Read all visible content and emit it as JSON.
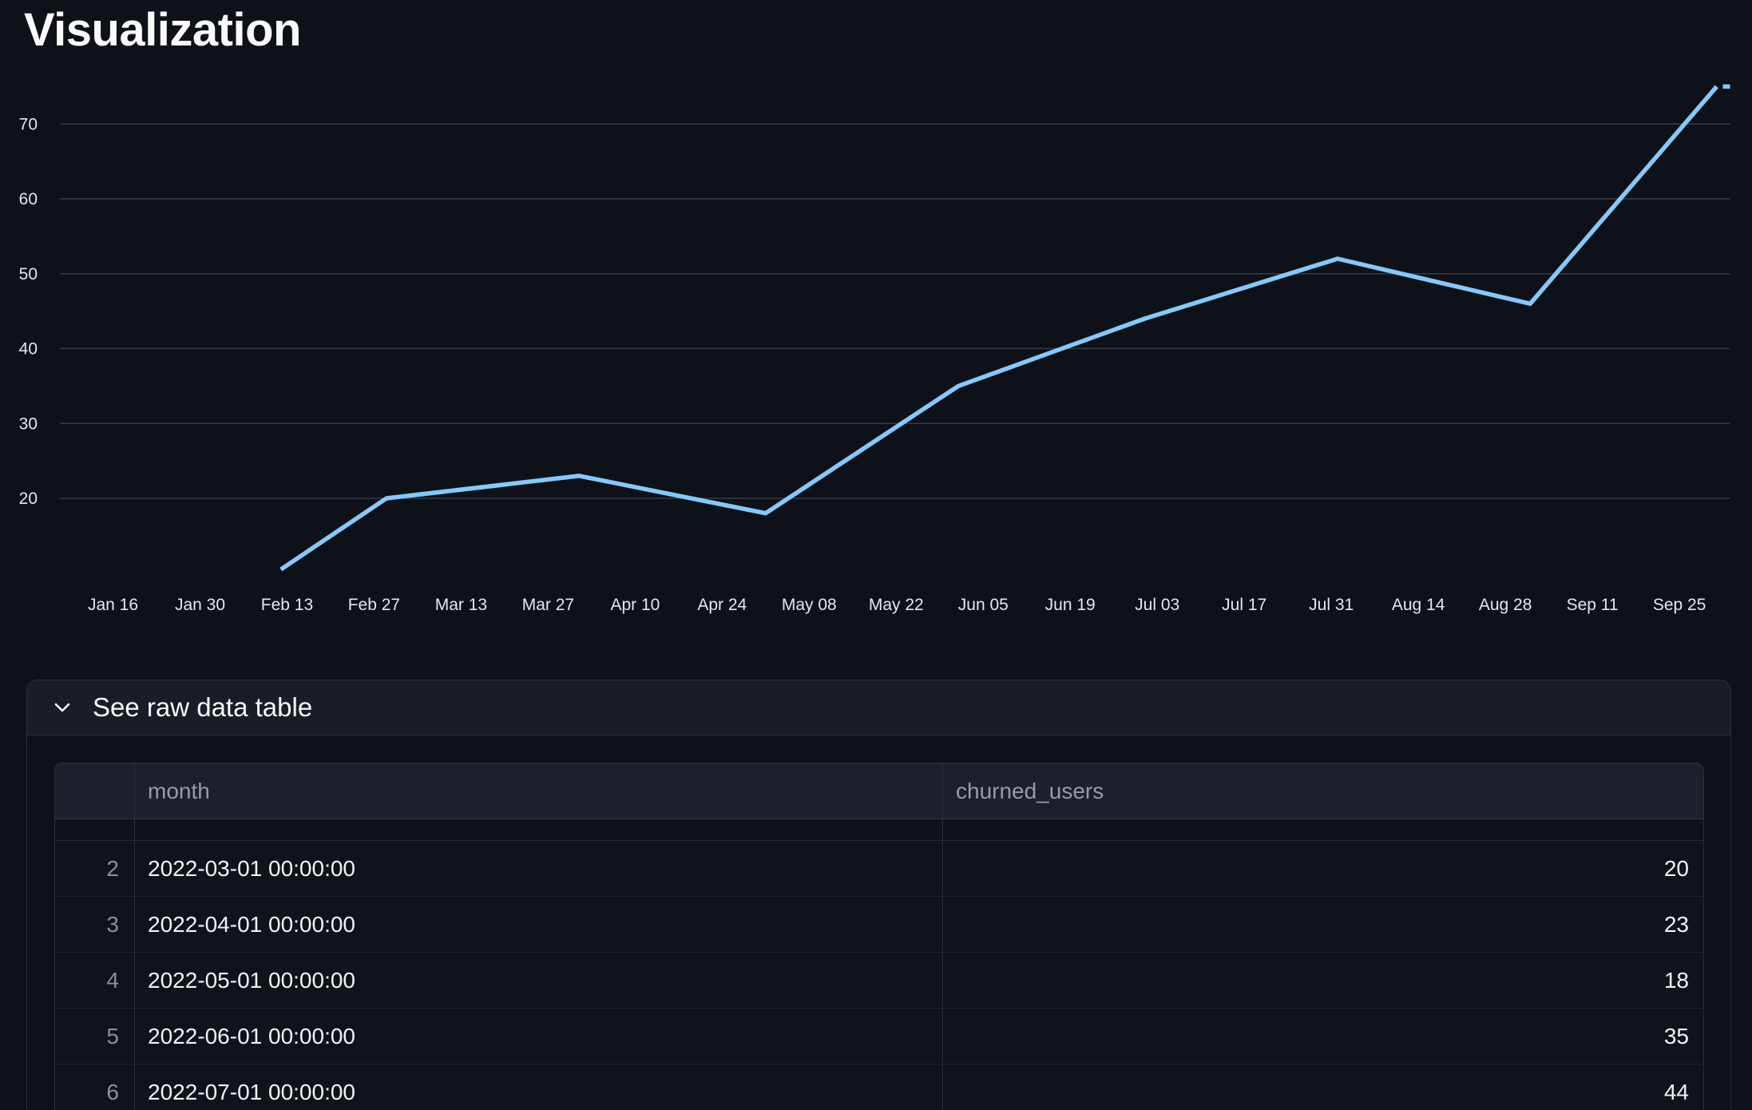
{
  "page": {
    "title": "Visualization"
  },
  "chart_data": {
    "type": "line",
    "title": "Visualization",
    "legend": "none",
    "grid": "horizontal",
    "x_axis": {
      "type": "temporal",
      "ticks": [
        {
          "label": "Jan 16",
          "date": "2022-01-16"
        },
        {
          "label": "Jan 30",
          "date": "2022-01-30"
        },
        {
          "label": "Feb 13",
          "date": "2022-02-13"
        },
        {
          "label": "Feb 27",
          "date": "2022-02-27"
        },
        {
          "label": "Mar 13",
          "date": "2022-03-13"
        },
        {
          "label": "Mar 27",
          "date": "2022-03-27"
        },
        {
          "label": "Apr 10",
          "date": "2022-04-10"
        },
        {
          "label": "Apr 24",
          "date": "2022-04-24"
        },
        {
          "label": "May 08",
          "date": "2022-05-08"
        },
        {
          "label": "May 22",
          "date": "2022-05-22"
        },
        {
          "label": "Jun 05",
          "date": "2022-06-05"
        },
        {
          "label": "Jun 19",
          "date": "2022-06-19"
        },
        {
          "label": "Jul 03",
          "date": "2022-07-03"
        },
        {
          "label": "Jul 17",
          "date": "2022-07-17"
        },
        {
          "label": "Jul 31",
          "date": "2022-07-31"
        },
        {
          "label": "Aug 14",
          "date": "2022-08-14"
        },
        {
          "label": "Aug 28",
          "date": "2022-08-28"
        },
        {
          "label": "Sep 11",
          "date": "2022-09-11"
        },
        {
          "label": "Sep 25",
          "date": "2022-09-25"
        }
      ]
    },
    "y_axis": {
      "ticks": [
        70,
        60,
        50,
        40,
        30,
        20
      ],
      "gridlines": true
    },
    "series": [
      {
        "name": "churned_users",
        "color": "#83c9ff",
        "points": [
          {
            "date": "2022-02-12",
            "value": 10.5,
            "estimated": true,
            "note": "visible start of line, partially cut"
          },
          {
            "date": "2022-03-01",
            "value": 20
          },
          {
            "date": "2022-04-01",
            "value": 23
          },
          {
            "date": "2022-05-01",
            "value": 18
          },
          {
            "date": "2022-06-01",
            "value": 35
          },
          {
            "date": "2022-07-01",
            "value": 44
          },
          {
            "date": "2022-08-01",
            "value": 52,
            "estimated": true
          },
          {
            "date": "2022-09-01",
            "value": 46,
            "estimated": true
          },
          {
            "date": "2022-10-01",
            "value": 75,
            "estimated": true
          }
        ]
      }
    ]
  },
  "expander": {
    "label": "See raw data table",
    "state": "expanded"
  },
  "table": {
    "columns": [
      "",
      "month",
      "churned_users"
    ],
    "partial_row_above": true,
    "rows": [
      [
        "2",
        "2022-03-01 00:00:00",
        "20"
      ],
      [
        "3",
        "2022-04-01 00:00:00",
        "23"
      ],
      [
        "4",
        "2022-05-01 00:00:00",
        "18"
      ],
      [
        "5",
        "2022-06-01 00:00:00",
        "35"
      ],
      [
        "6",
        "2022-07-01 00:00:00",
        "44"
      ]
    ]
  },
  "colors": {
    "background": "#0e1117",
    "line": "#83c9ff",
    "gridline": "#363a45",
    "axis_label": "#e4e9f0",
    "text": "#fafafa",
    "muted_text": "#969ca6",
    "table_header_bg": "#1c202a",
    "expander_header_bg": "#191d25"
  }
}
